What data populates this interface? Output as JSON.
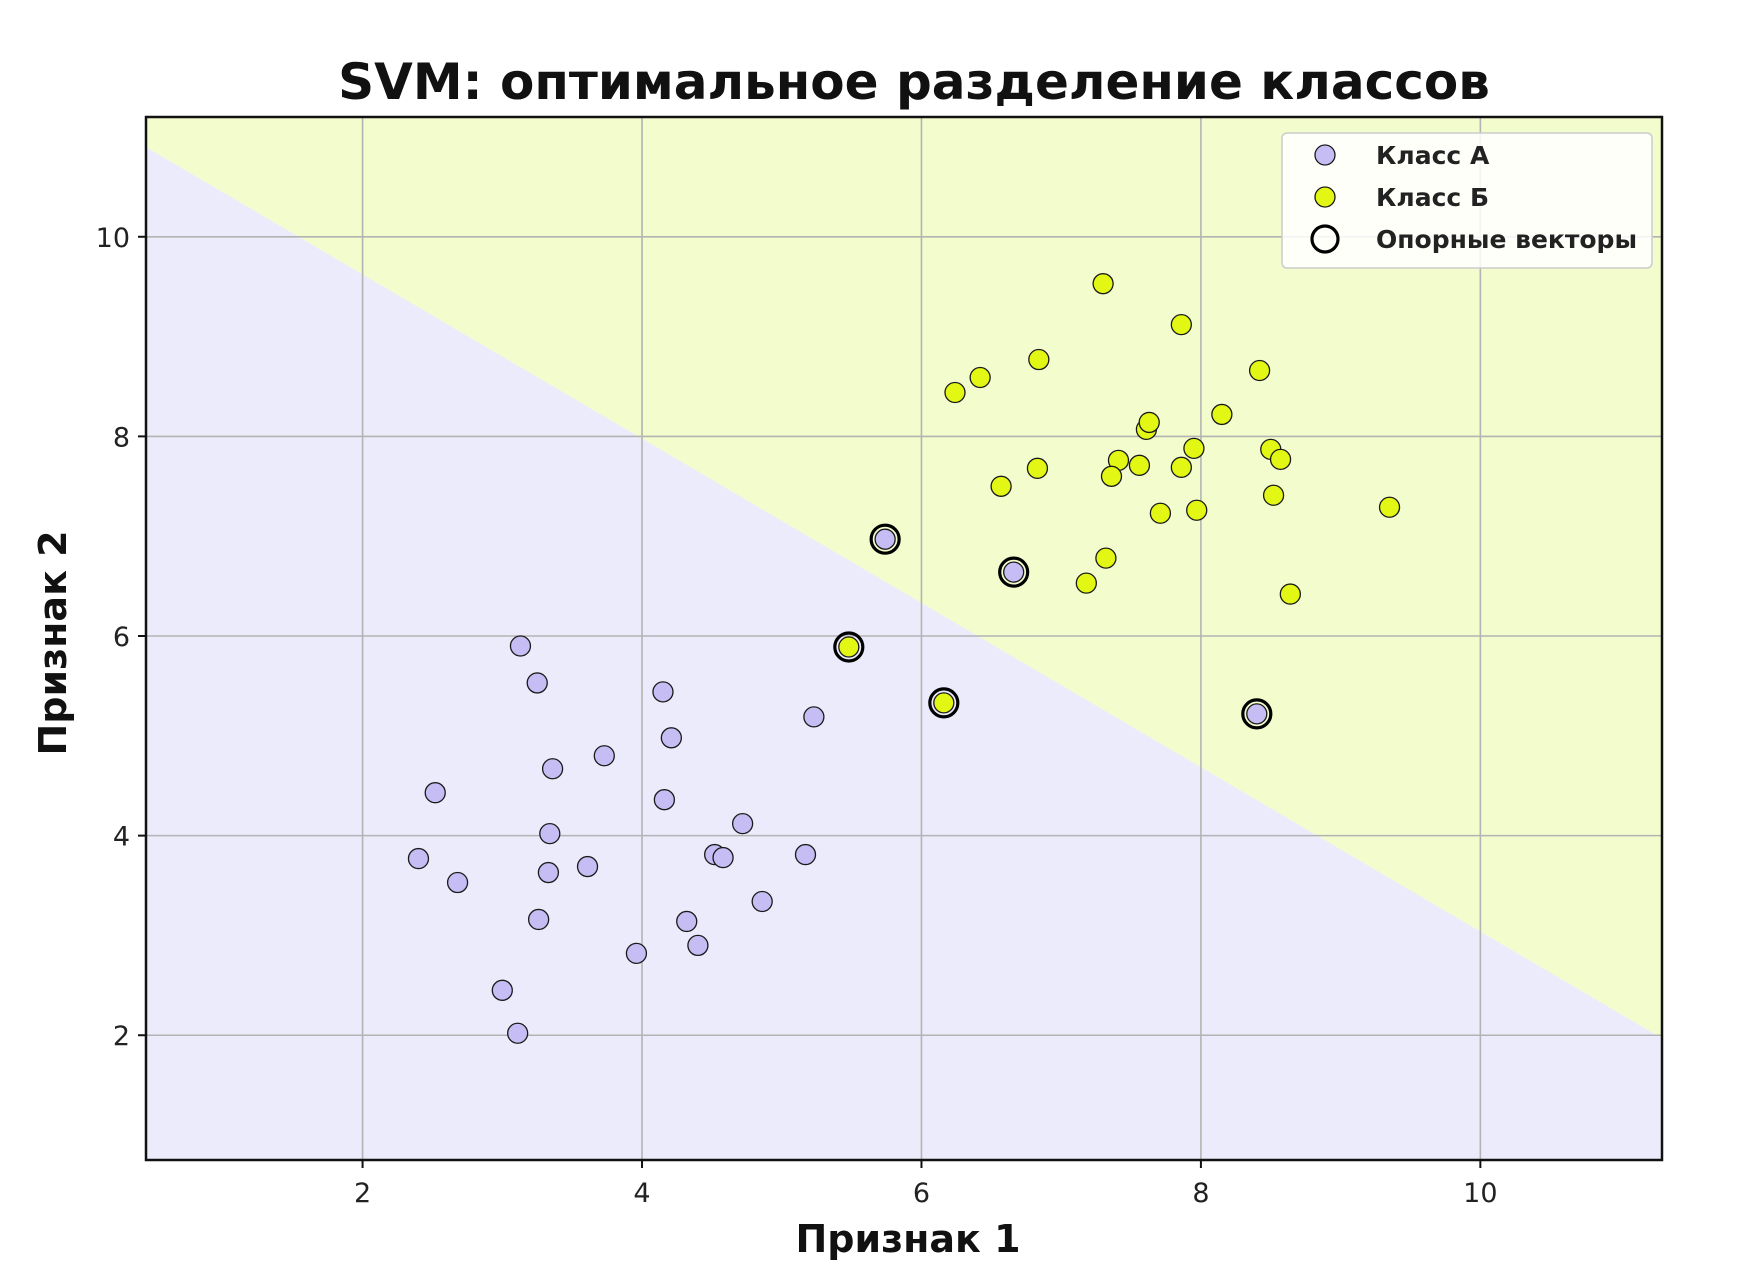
{
  "chart_data": {
    "type": "scatter",
    "title": "SVM: оптимальное разделение классов",
    "xlabel": "Признак 1",
    "ylabel": "Признак 2",
    "xlim": [
      0.45,
      11.3
    ],
    "ylim": [
      0.75,
      11.2
    ],
    "xticks": [
      2,
      4,
      6,
      8,
      10
    ],
    "yticks": [
      2,
      4,
      6,
      8,
      10
    ],
    "grid": true,
    "legend_position": "top-right",
    "background_regions": [
      {
        "class": "Класс А",
        "color": "#ecebfb",
        "side": "below"
      },
      {
        "class": "Класс Б",
        "color": "#f2fccc",
        "side": "above"
      }
    ],
    "decision_boundary": {
      "points": [
        [
          0.45,
          10.9
        ],
        [
          11.3,
          1.97
        ]
      ]
    },
    "series": [
      {
        "name": "Класс А",
        "color": "#c5bdf3",
        "points": [
          [
            3.13,
            5.9
          ],
          [
            3.25,
            5.53
          ],
          [
            4.15,
            5.44
          ],
          [
            5.23,
            5.19
          ],
          [
            4.21,
            4.98
          ],
          [
            3.73,
            4.8
          ],
          [
            3.36,
            4.67
          ],
          [
            2.52,
            4.43
          ],
          [
            4.16,
            4.36
          ],
          [
            4.72,
            4.12
          ],
          [
            3.34,
            4.02
          ],
          [
            2.4,
            3.77
          ],
          [
            3.61,
            3.69
          ],
          [
            4.52,
            3.81
          ],
          [
            4.58,
            3.78
          ],
          [
            5.17,
            3.81
          ],
          [
            3.33,
            3.63
          ],
          [
            2.68,
            3.53
          ],
          [
            4.86,
            3.34
          ],
          [
            3.26,
            3.16
          ],
          [
            4.32,
            3.14
          ],
          [
            4.4,
            2.9
          ],
          [
            3.96,
            2.82
          ],
          [
            3.0,
            2.45
          ],
          [
            3.11,
            2.02
          ],
          [
            5.74,
            6.97
          ],
          [
            6.66,
            6.64
          ],
          [
            8.4,
            5.22
          ]
        ]
      },
      {
        "name": "Класс Б",
        "color": "#e2f713",
        "points": [
          [
            7.3,
            9.53
          ],
          [
            7.86,
            9.12
          ],
          [
            8.42,
            8.66
          ],
          [
            6.84,
            8.77
          ],
          [
            6.42,
            8.59
          ],
          [
            6.24,
            8.44
          ],
          [
            8.15,
            8.22
          ],
          [
            7.61,
            8.07
          ],
          [
            7.63,
            8.14
          ],
          [
            7.95,
            7.88
          ],
          [
            8.5,
            7.87
          ],
          [
            7.41,
            7.76
          ],
          [
            7.56,
            7.71
          ],
          [
            8.57,
            7.77
          ],
          [
            7.86,
            7.69
          ],
          [
            6.83,
            7.68
          ],
          [
            7.36,
            7.6
          ],
          [
            6.57,
            7.5
          ],
          [
            8.52,
            7.41
          ],
          [
            7.97,
            7.26
          ],
          [
            7.71,
            7.23
          ],
          [
            9.35,
            7.29
          ],
          [
            7.32,
            6.78
          ],
          [
            7.18,
            6.53
          ],
          [
            8.64,
            6.42
          ],
          [
            5.48,
            5.89
          ],
          [
            6.16,
            5.33
          ]
        ]
      }
    ],
    "support_vectors": [
      [
        5.74,
        6.97
      ],
      [
        6.66,
        6.64
      ],
      [
        5.48,
        5.89
      ],
      [
        6.16,
        5.33
      ],
      [
        8.4,
        5.22
      ]
    ],
    "legend": [
      {
        "label": "Класс А",
        "marker": "circle",
        "color": "#c5bdf3"
      },
      {
        "label": "Класс Б",
        "marker": "circle",
        "color": "#e2f713"
      },
      {
        "label": "Опорные векторы",
        "marker": "ring",
        "color": "#000000"
      }
    ]
  }
}
